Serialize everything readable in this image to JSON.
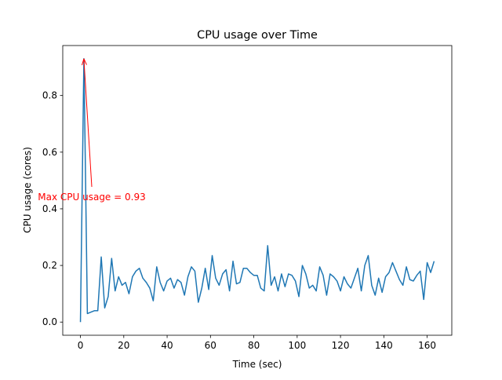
{
  "chart_data": {
    "type": "line",
    "title": "CPU usage over Time",
    "xlabel": "Time (sec)",
    "ylabel": "CPU usage (cores)",
    "x": [
      0,
      1.6,
      3.2,
      4.8,
      6.4,
      8,
      9.6,
      11.2,
      12.8,
      14.4,
      16,
      17.6,
      19.2,
      20.8,
      22.4,
      24,
      25.6,
      27.2,
      28.8,
      30.4,
      32,
      33.6,
      35.2,
      36.8,
      38.4,
      40,
      41.6,
      43.2,
      44.8,
      46.4,
      48,
      49.6,
      51.2,
      52.8,
      54.4,
      56,
      57.6,
      59.2,
      60.8,
      62.4,
      64,
      65.6,
      67.2,
      68.8,
      70.4,
      72,
      73.6,
      75.2,
      76.8,
      78.4,
      80,
      81.6,
      83.2,
      84.8,
      86.4,
      88,
      89.6,
      91.2,
      92.8,
      94.4,
      96,
      97.6,
      99.2,
      100.8,
      102.4,
      104,
      105.6,
      107.2,
      108.8,
      110.4,
      112,
      113.6,
      115.2,
      116.8,
      118.4,
      120,
      121.6,
      123.2,
      124.8,
      126.4,
      128,
      129.6,
      131.2,
      132.8,
      134.4,
      136,
      137.6,
      139.2,
      140.8,
      142.4,
      144,
      145.6,
      147.2,
      148.8,
      150.4,
      152,
      153.6,
      155.2,
      156.8,
      158.4,
      160,
      161.6,
      163.2
    ],
    "values": [
      0,
      0.93,
      0.03,
      0.035,
      0.04,
      0.04,
      0.23,
      0.05,
      0.09,
      0.225,
      0.11,
      0.16,
      0.13,
      0.14,
      0.1,
      0.16,
      0.18,
      0.19,
      0.155,
      0.14,
      0.12,
      0.075,
      0.195,
      0.14,
      0.11,
      0.145,
      0.155,
      0.12,
      0.15,
      0.14,
      0.095,
      0.16,
      0.195,
      0.18,
      0.07,
      0.12,
      0.19,
      0.115,
      0.235,
      0.155,
      0.13,
      0.17,
      0.185,
      0.11,
      0.215,
      0.135,
      0.14,
      0.19,
      0.19,
      0.175,
      0.165,
      0.165,
      0.12,
      0.11,
      0.27,
      0.13,
      0.16,
      0.11,
      0.17,
      0.125,
      0.17,
      0.165,
      0.145,
      0.09,
      0.2,
      0.17,
      0.12,
      0.13,
      0.11,
      0.195,
      0.165,
      0.095,
      0.17,
      0.16,
      0.145,
      0.11,
      0.16,
      0.135,
      0.12,
      0.155,
      0.19,
      0.11,
      0.2,
      0.235,
      0.13,
      0.095,
      0.155,
      0.105,
      0.16,
      0.175,
      0.21,
      0.18,
      0.15,
      0.13,
      0.195,
      0.15,
      0.145,
      0.165,
      0.18,
      0.08,
      0.21,
      0.175,
      0.215
    ],
    "color": "#1f77b4",
    "xlim": [
      -8.16,
      171.36
    ],
    "ylim": [
      -0.0465,
      0.9765
    ],
    "xticks": [
      0,
      20,
      40,
      60,
      80,
      100,
      120,
      140,
      160
    ],
    "yticks": [
      {
        "value": 0,
        "label": "0.0"
      },
      0.2,
      0.4,
      0.6,
      0.8
    ],
    "annotations": [
      {
        "text": "Max CPU usage = 0.93",
        "color": "red"
      }
    ]
  }
}
